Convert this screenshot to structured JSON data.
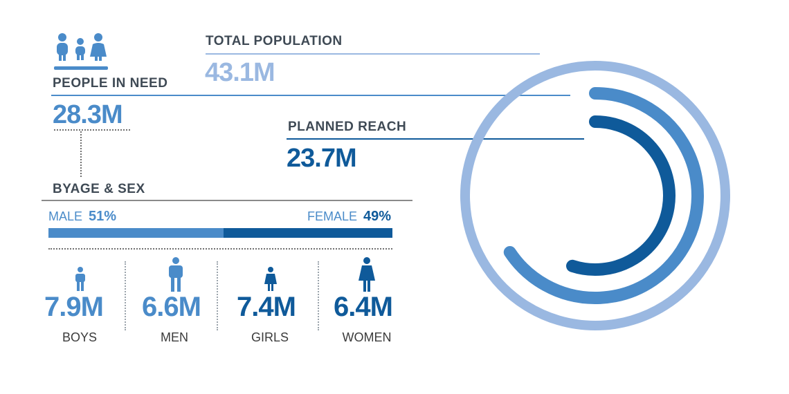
{
  "colors": {
    "light": "#9ab8e1",
    "mid": "#4a8bc9",
    "dark": "#0f5a9a",
    "text_gray": "#3f4a55"
  },
  "icons": {
    "people": "people-group-icon",
    "boy": "boy-icon",
    "man": "man-icon",
    "girl": "girl-icon",
    "woman": "woman-icon"
  },
  "total_population": {
    "label": "TOTAL POPULATION",
    "value": "43.1M"
  },
  "people_in_need": {
    "label": "PEOPLE IN NEED",
    "value": "28.3M"
  },
  "planned_reach": {
    "label": "PLANNED REACH",
    "value": "23.7M"
  },
  "age_sex": {
    "title": "BYAGE & SEX",
    "male_label": "MALE",
    "male_pct": "51%",
    "female_label": "FEMALE",
    "female_pct": "49%"
  },
  "groups": [
    {
      "value": "7.9M",
      "label": "BOYS"
    },
    {
      "value": "6.6M",
      "label": "MEN"
    },
    {
      "value": "7.4M",
      "label": "GIRLS"
    },
    {
      "value": "6.4M",
      "label": "WOMEN"
    }
  ],
  "chart_data": {
    "type": "radial-bar",
    "series": [
      {
        "name": "TOTAL POPULATION",
        "value": 43.1,
        "unit": "M"
      },
      {
        "name": "PEOPLE IN NEED",
        "value": 28.3,
        "unit": "M"
      },
      {
        "name": "PLANNED REACH",
        "value": 23.7,
        "unit": "M"
      }
    ],
    "sex_split": {
      "male": 51,
      "female": 49
    },
    "demographics": [
      {
        "label": "BOYS",
        "value": 7.9
      },
      {
        "label": "MEN",
        "value": 6.6
      },
      {
        "label": "GIRLS",
        "value": 7.4
      },
      {
        "label": "WOMEN",
        "value": 6.4
      }
    ]
  }
}
